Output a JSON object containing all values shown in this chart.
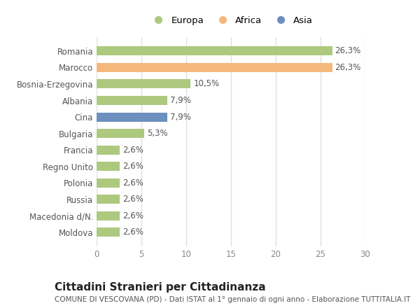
{
  "categories": [
    "Moldova",
    "Macedonia d/N.",
    "Russia",
    "Polonia",
    "Regno Unito",
    "Francia",
    "Bulgaria",
    "Cina",
    "Albania",
    "Bosnia-Erzegovina",
    "Marocco",
    "Romania"
  ],
  "values": [
    2.6,
    2.6,
    2.6,
    2.6,
    2.6,
    2.6,
    5.3,
    7.9,
    7.9,
    10.5,
    26.3,
    26.3
  ],
  "labels": [
    "2,6%",
    "2,6%",
    "2,6%",
    "2,6%",
    "2,6%",
    "2,6%",
    "5,3%",
    "7,9%",
    "7,9%",
    "10,5%",
    "26,3%",
    "26,3%"
  ],
  "colors": [
    "#adc97e",
    "#adc97e",
    "#adc97e",
    "#adc97e",
    "#adc97e",
    "#adc97e",
    "#adc97e",
    "#6b8fbf",
    "#adc97e",
    "#adc97e",
    "#f5b87a",
    "#adc97e"
  ],
  "legend": [
    {
      "label": "Europa",
      "color": "#adc97e"
    },
    {
      "label": "Africa",
      "color": "#f5b87a"
    },
    {
      "label": "Asia",
      "color": "#6b8fbf"
    }
  ],
  "xlim": [
    0,
    30
  ],
  "xticks": [
    0,
    5,
    10,
    15,
    20,
    25,
    30
  ],
  "title": "Cittadini Stranieri per Cittadinanza",
  "subtitle": "COMUNE DI VESCOVANA (PD) - Dati ISTAT al 1° gennaio di ogni anno - Elaborazione TUTTITALIA.IT",
  "bg_color": "#ffffff",
  "grid_color": "#e0e0e0",
  "bar_height": 0.55,
  "label_fontsize": 8.5,
  "tick_fontsize": 8.5,
  "title_fontsize": 11,
  "subtitle_fontsize": 7.5
}
